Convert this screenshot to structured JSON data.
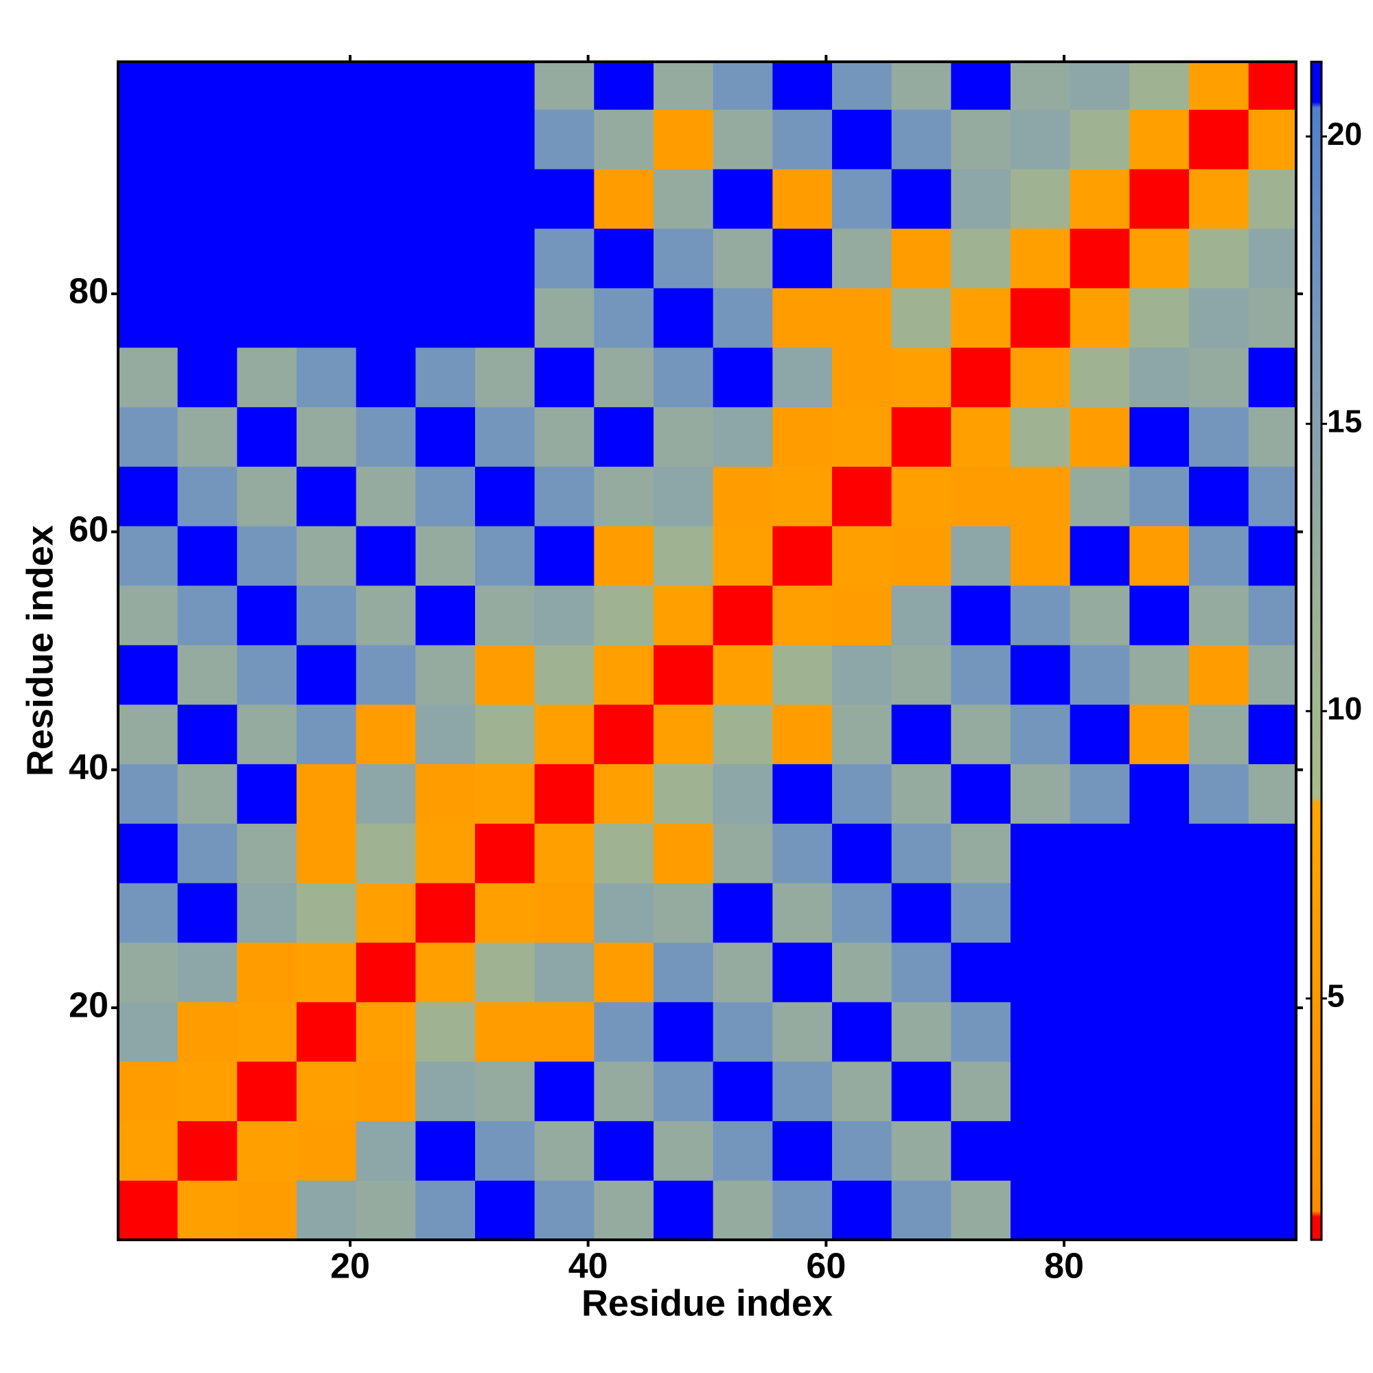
{
  "chart_data": {
    "type": "heatmap",
    "xlabel": "Residue index",
    "ylabel": "Residue index",
    "xbins": [
      0.5,
      5.5,
      10.5,
      15.5,
      20.5,
      25.5,
      30.5,
      35.5,
      40.5,
      45.5,
      50.5,
      55.5,
      60.5,
      65.5,
      70.5,
      75.5,
      80.5,
      85.5,
      90.5,
      95.5,
      99.5
    ],
    "ybins": [
      0.5,
      5.5,
      10.5,
      15.5,
      20.5,
      25.5,
      30.5,
      35.5,
      40.5,
      45.5,
      50.5,
      55.5,
      60.5,
      65.5,
      70.5,
      75.5,
      80.5,
      85.5,
      90.5,
      95.5,
      99.5
    ],
    "xlim": [
      0.5,
      99.5
    ],
    "ylim": [
      0.5,
      99.5
    ],
    "xticks": [
      20,
      40,
      60,
      80
    ],
    "yticks": [
      20,
      40,
      60,
      80
    ],
    "clim": [
      0.8,
      21.3
    ],
    "cticks": [
      5,
      10,
      15,
      20
    ],
    "colorscale": [
      [
        0.8,
        "#ff0000"
      ],
      [
        1.2,
        "#ff0000"
      ],
      [
        1.3,
        "#ff8c00"
      ],
      [
        8.4,
        "#ffa500"
      ],
      [
        8.5,
        "#a8bc88"
      ],
      [
        12,
        "#9cb098"
      ],
      [
        16,
        "#7e9cb8"
      ],
      [
        20.5,
        "#5080d0"
      ],
      [
        20.6,
        "#0000ff"
      ],
      [
        21.3,
        "#0000ff"
      ]
    ],
    "z": [
      [
        1,
        7,
        6,
        14,
        13,
        17,
        21,
        17,
        13,
        21,
        13,
        17,
        21,
        17,
        13,
        21,
        21,
        21,
        21,
        21
      ],
      [
        7,
        1,
        7,
        6,
        14,
        21,
        17,
        13,
        21,
        13,
        17,
        21,
        17,
        13,
        21,
        21,
        21,
        21,
        21,
        21
      ],
      [
        6,
        7,
        1,
        7,
        6,
        14,
        13,
        21,
        13,
        17,
        21,
        17,
        13,
        21,
        13,
        21,
        21,
        21,
        21,
        21
      ],
      [
        14,
        6,
        7,
        1,
        7,
        11,
        6,
        6,
        17,
        21,
        17,
        13,
        21,
        13,
        17,
        21,
        21,
        21,
        21,
        21
      ],
      [
        13,
        14,
        6,
        7,
        1,
        7,
        11,
        14,
        6,
        17,
        13,
        21,
        13,
        17,
        21,
        21,
        21,
        21,
        21,
        21
      ],
      [
        17,
        21,
        14,
        11,
        7,
        1,
        7,
        6,
        14,
        13,
        21,
        13,
        17,
        21,
        17,
        21,
        21,
        21,
        21,
        21
      ],
      [
        21,
        17,
        13,
        6,
        11,
        7,
        1,
        7,
        11,
        6,
        13,
        17,
        21,
        17,
        13,
        21,
        21,
        21,
        21,
        21
      ],
      [
        17,
        13,
        21,
        6,
        14,
        6,
        7,
        1,
        7,
        11,
        14,
        21,
        17,
        13,
        21,
        13,
        17,
        21,
        17,
        13
      ],
      [
        13,
        21,
        13,
        17,
        6,
        14,
        11,
        7,
        1,
        7,
        11,
        6,
        13,
        21,
        13,
        17,
        21,
        6,
        13,
        21
      ],
      [
        21,
        13,
        17,
        21,
        17,
        13,
        6,
        11,
        7,
        1,
        7,
        11,
        14,
        13,
        17,
        21,
        17,
        13,
        6,
        13
      ],
      [
        13,
        17,
        21,
        17,
        13,
        21,
        13,
        14,
        11,
        7,
        1,
        7,
        6,
        14,
        21,
        17,
        13,
        21,
        13,
        17
      ],
      [
        17,
        21,
        17,
        13,
        21,
        13,
        17,
        21,
        6,
        11,
        7,
        1,
        7,
        6,
        14,
        6,
        21,
        6,
        17,
        21
      ],
      [
        21,
        17,
        13,
        21,
        13,
        17,
        21,
        17,
        13,
        14,
        6,
        7,
        1,
        7,
        6,
        6,
        13,
        17,
        21,
        17
      ],
      [
        17,
        13,
        21,
        13,
        17,
        21,
        17,
        13,
        21,
        13,
        14,
        6,
        7,
        1,
        7,
        11,
        6,
        21,
        17,
        13
      ],
      [
        13,
        21,
        13,
        17,
        21,
        17,
        13,
        21,
        13,
        17,
        21,
        14,
        6,
        7,
        1,
        7,
        11,
        14,
        13,
        21
      ],
      [
        21,
        21,
        21,
        21,
        21,
        21,
        21,
        13,
        17,
        21,
        17,
        6,
        6,
        11,
        7,
        1,
        7,
        11,
        14,
        13
      ],
      [
        21,
        21,
        21,
        21,
        21,
        21,
        21,
        17,
        21,
        17,
        13,
        21,
        13,
        6,
        11,
        7,
        1,
        7,
        11,
        14
      ],
      [
        21,
        21,
        21,
        21,
        21,
        21,
        21,
        21,
        6,
        13,
        21,
        6,
        17,
        21,
        14,
        11,
        7,
        1,
        7,
        11
      ],
      [
        21,
        21,
        21,
        21,
        21,
        21,
        21,
        17,
        13,
        6,
        13,
        17,
        21,
        17,
        13,
        14,
        11,
        7,
        1,
        7
      ],
      [
        21,
        21,
        21,
        21,
        21,
        21,
        21,
        13,
        21,
        13,
        17,
        21,
        17,
        13,
        21,
        13,
        14,
        11,
        7,
        1
      ]
    ]
  }
}
